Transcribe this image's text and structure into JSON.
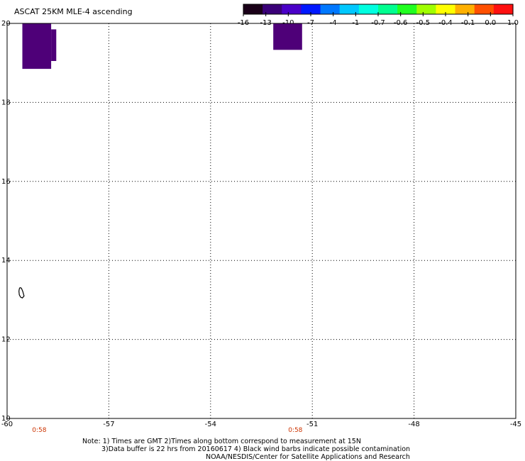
{
  "title": "ASCAT 25KM MLE-4 ascending",
  "colorbar": {
    "labels": [
      "-16",
      "-13",
      "-10",
      "-7",
      "-4",
      "-1",
      "-0.7",
      "-0.6",
      "-0.5",
      "-0.4",
      "-0.1",
      "0.0",
      "1.0"
    ],
    "colors": [
      "#1a0018",
      "#3a0078",
      "#4a00c8",
      "#0018ff",
      "#0078ff",
      "#00c8ff",
      "#00ffe0",
      "#00ff90",
      "#20ff20",
      "#a0ff00",
      "#ffff00",
      "#ffb000",
      "#ff5000",
      "#ff1010"
    ]
  },
  "axes": {
    "lon_labels": [
      "-60",
      "-57",
      "-54",
      "-51",
      "-48",
      "-45"
    ],
    "lat_labels": [
      "20",
      "18",
      "16",
      "14",
      "12",
      "10"
    ],
    "lon_range": [
      -60,
      -45
    ],
    "lat_range": [
      10,
      20
    ]
  },
  "swath_blocks": [
    {
      "lon_min": -59.55,
      "lon_max": -58.7,
      "lat_min": 18.85,
      "lat_max": 20.0,
      "color": "#4e0078"
    },
    {
      "lon_min": -58.7,
      "lon_max": -58.55,
      "lat_min": 19.05,
      "lat_max": 19.85,
      "color": "#4e0078"
    },
    {
      "lon_min": -52.15,
      "lon_max": -51.3,
      "lat_min": 19.33,
      "lat_max": 20.0,
      "color": "#4e0078"
    }
  ],
  "coastline": [
    [
      -59.62,
      13.31
    ],
    [
      -59.58,
      13.3
    ],
    [
      -59.54,
      13.22
    ],
    [
      -59.5,
      13.1
    ],
    [
      -59.55,
      13.05
    ],
    [
      -59.6,
      13.07
    ],
    [
      -59.64,
      13.13
    ],
    [
      -59.65,
      13.22
    ],
    [
      -59.64,
      13.28
    ],
    [
      -59.62,
      13.31
    ]
  ],
  "time_labels": [
    {
      "text": "0:58",
      "lon": -59.05
    },
    {
      "text": "0:58",
      "lon": -51.5
    }
  ],
  "notes": [
    "Note: 1) Times are GMT 2)Times along bottom correspond to measurement at 15N",
    "3)Data buffer is 22 hrs from 20160617 4) Black wind barbs indicate possible contamination",
    "NOAA/NESDIS/Center for Satellite Applications and Research"
  ]
}
